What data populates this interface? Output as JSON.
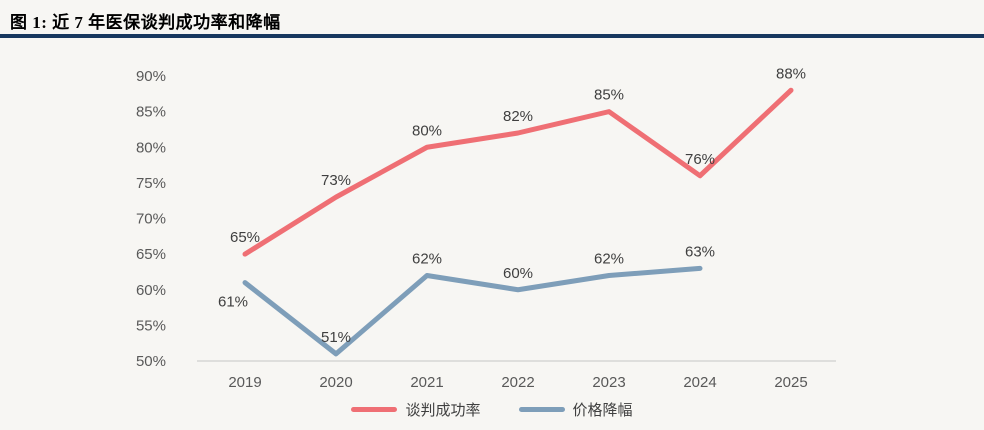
{
  "header": {
    "title": "图 1:  近 7 年医保谈判成功率和降幅"
  },
  "colors": {
    "divider": "#17375e",
    "series_red": "#ef6f74",
    "series_blue": "#7e9eb9",
    "tick_text": "#595959",
    "data_label_text": "#3f3f3f",
    "axis_line": "#c6c6c6",
    "background": "#f7f6f3"
  },
  "chart_data": {
    "type": "line",
    "title": "近 7 年医保谈判成功率和降幅",
    "categories": [
      "2019",
      "2020",
      "2021",
      "2022",
      "2023",
      "2024",
      "2025"
    ],
    "series": [
      {
        "name": "谈判成功率",
        "color": "#ef6f74",
        "values": [
          65,
          73,
          80,
          82,
          85,
          76,
          88
        ],
        "labels": [
          "65%",
          "73%",
          "80%",
          "82%",
          "85%",
          "76%",
          "88%"
        ]
      },
      {
        "name": "价格降幅",
        "color": "#7e9eb9",
        "values": [
          61,
          51,
          62,
          60,
          62,
          63
        ],
        "labels": [
          "61%",
          "51%",
          "62%",
          "60%",
          "62%",
          "63%"
        ],
        "label_below_indices": [
          0
        ]
      }
    ],
    "ylim": [
      50,
      90
    ],
    "ytick_step": 5,
    "ytick_suffix": "%",
    "yticks": [
      "50%",
      "55%",
      "60%",
      "65%",
      "70%",
      "75%",
      "80%",
      "85%",
      "90%"
    ],
    "grid": false,
    "legend_position": "bottom"
  }
}
